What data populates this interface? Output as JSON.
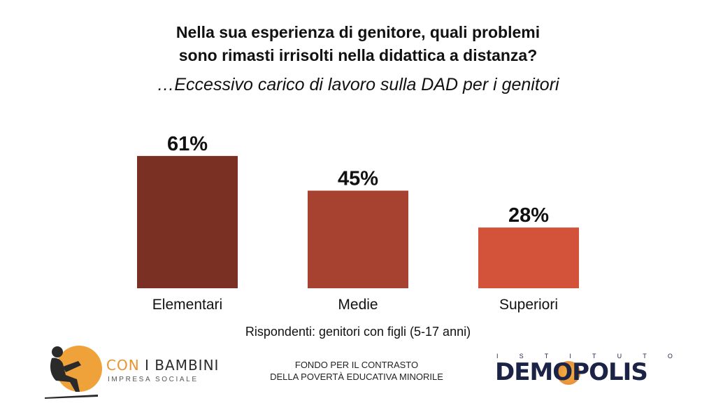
{
  "title_lines": [
    "Nella sua esperienza di genitore, quali problemi",
    "sono rimasti irrisolti nella didattica a distanza?"
  ],
  "subtitle": "…Eccessivo carico di lavoro sulla DAD per i genitori",
  "chart_data": {
    "type": "bar",
    "categories": [
      "Elementari",
      "Medie",
      "Superiori"
    ],
    "values": [
      61,
      45,
      28
    ],
    "value_labels": [
      "61%",
      "45%",
      "28%"
    ],
    "colors": [
      "#7a3022",
      "#a84230",
      "#d2533a"
    ],
    "ylim": [
      0,
      100
    ],
    "grid": false,
    "legend": "none"
  },
  "respondents": "Rispondenti: genitori con figli (5-17 anni)",
  "footer": {
    "left_logo_word1": "CON",
    "left_logo_word2": "I BAMBINI",
    "left_logo_sub": "IMPRESA SOCIALE",
    "center_line1": "FONDO PER IL CONTRASTO",
    "center_line2": "DELLA POVERTÀ EDUCATIVA MINORILE",
    "right_logo_top": "ISTITUTO",
    "right_logo_name": "DEMOPOLIS"
  }
}
